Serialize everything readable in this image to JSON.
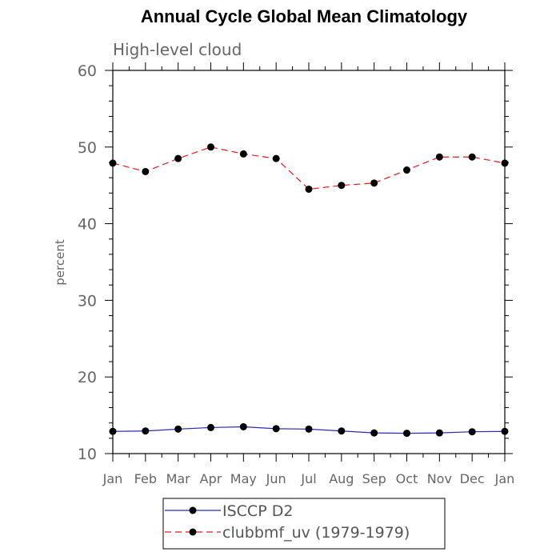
{
  "chart_data": {
    "type": "line",
    "title": "Annual Cycle Global Mean Climatology",
    "subtitle": "High-level cloud",
    "xlabel": "",
    "ylabel": "percent",
    "categories": [
      "Jan",
      "Feb",
      "Mar",
      "Apr",
      "May",
      "Jun",
      "Jul",
      "Aug",
      "Sep",
      "Oct",
      "Nov",
      "Dec",
      "Jan"
    ],
    "ylim": [
      10,
      60
    ],
    "yticks": [
      10,
      20,
      30,
      40,
      50,
      60
    ],
    "series": [
      {
        "name": "ISCCP D2",
        "color": "#2b2bb0",
        "dash": "solid",
        "values": [
          12.9,
          12.95,
          13.2,
          13.4,
          13.5,
          13.25,
          13.2,
          12.95,
          12.7,
          12.65,
          12.7,
          12.85,
          12.9
        ]
      },
      {
        "name": "clubbmf_uv (1979-1979)",
        "color": "#e31a1c",
        "dash": "dashed",
        "values": [
          47.9,
          46.8,
          48.5,
          50.0,
          49.1,
          48.5,
          44.5,
          45.0,
          45.3,
          47.0,
          48.7,
          48.7,
          47.9
        ]
      }
    ],
    "grid": false,
    "legend_position": "bottom-center"
  }
}
